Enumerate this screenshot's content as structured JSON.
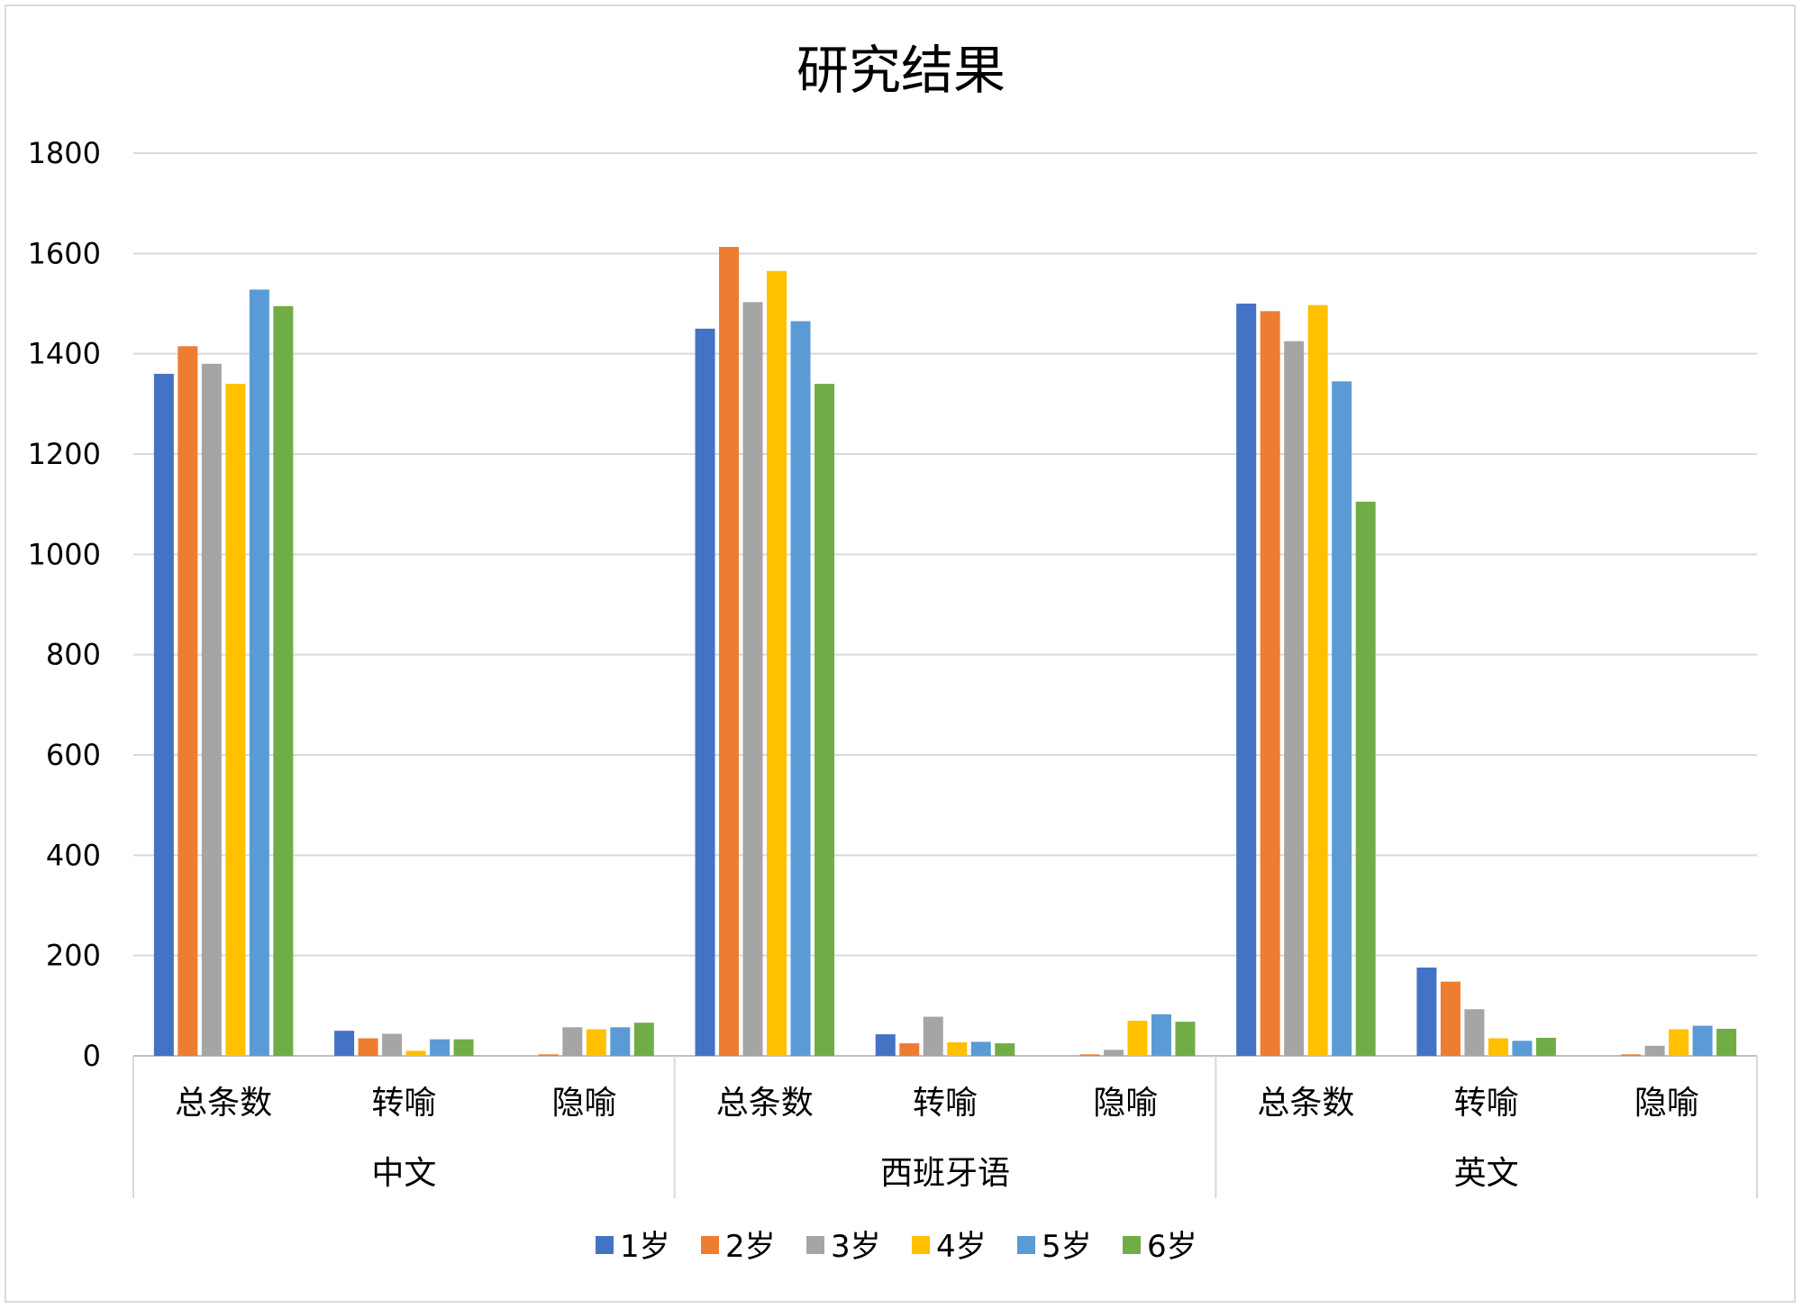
{
  "chart_data": {
    "type": "bar",
    "title": "研究结果",
    "xlabel": "",
    "ylabel": "",
    "ylim": [
      0,
      1800
    ],
    "yticks": [
      0,
      200,
      400,
      600,
      800,
      1000,
      1200,
      1400,
      1600,
      1800
    ],
    "grid": true,
    "legend_position": "bottom",
    "groups": [
      {
        "label": "中文",
        "categories": [
          "总条数",
          "转喻",
          "隐喻"
        ]
      },
      {
        "label": "西班牙语",
        "categories": [
          "总条数",
          "转喻",
          "隐喻"
        ]
      },
      {
        "label": "英文",
        "categories": [
          "总条数",
          "转喻",
          "隐喻"
        ]
      }
    ],
    "series": [
      {
        "name": "1岁",
        "color": "#4472C4",
        "values": [
          1360,
          50,
          0,
          1450,
          43,
          0,
          1500,
          176,
          0
        ]
      },
      {
        "name": "2岁",
        "color": "#ED7D31",
        "values": [
          1415,
          35,
          3,
          1613,
          25,
          3,
          1485,
          148,
          3
        ]
      },
      {
        "name": "3岁",
        "color": "#A5A5A5",
        "values": [
          1380,
          44,
          57,
          1503,
          78,
          12,
          1425,
          93,
          20
        ]
      },
      {
        "name": "4岁",
        "color": "#FFC000",
        "values": [
          1340,
          10,
          53,
          1565,
          27,
          70,
          1497,
          35,
          53
        ]
      },
      {
        "name": "5岁",
        "color": "#5B9BD5",
        "values": [
          1528,
          33,
          57,
          1465,
          28,
          83,
          1345,
          30,
          60
        ]
      },
      {
        "name": "6岁",
        "color": "#70AD47",
        "values": [
          1495,
          33,
          66,
          1340,
          25,
          68,
          1105,
          36,
          54
        ]
      }
    ]
  }
}
